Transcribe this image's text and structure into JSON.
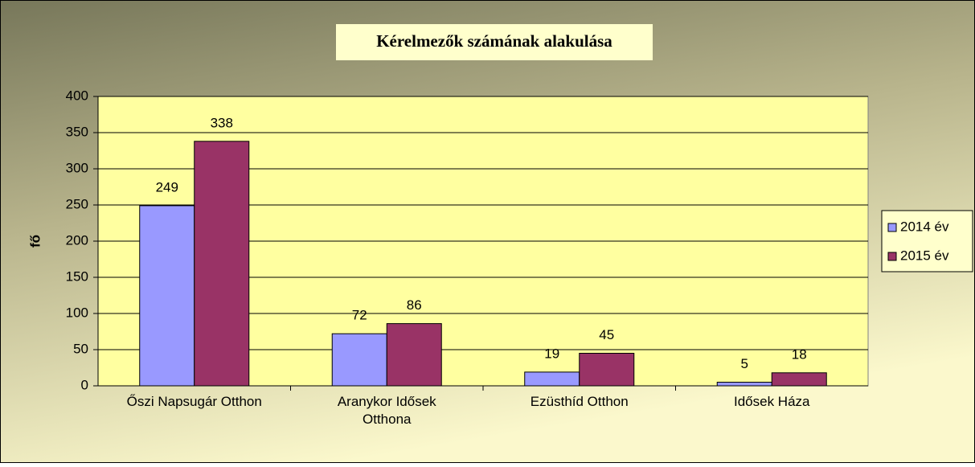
{
  "chart_data": {
    "type": "bar",
    "title": "Kérelmezők számának alakulása",
    "ylabel": "fő",
    "categories": [
      "Őszi Napsugár Otthon",
      "Aranykor Idősek Otthona",
      "Ezüsthíd Otthon",
      "Idősek Háza"
    ],
    "series": [
      {
        "name": "2014 év",
        "color": "#9999ff",
        "values": [
          249,
          72,
          19,
          5
        ]
      },
      {
        "name": "2015 év",
        "color": "#993366",
        "values": [
          338,
          86,
          45,
          18
        ]
      }
    ],
    "ylim": [
      0,
      400
    ],
    "yticks": [
      0,
      50,
      100,
      150,
      200,
      250,
      300,
      350,
      400
    ],
    "grid": true,
    "legend": "right"
  }
}
